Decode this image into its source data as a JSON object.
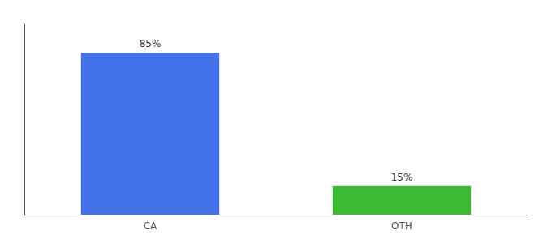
{
  "chart_data": {
    "type": "bar",
    "categories": [
      "CA",
      "OTH"
    ],
    "values": [
      85,
      15
    ],
    "value_labels": [
      "85%",
      "15%"
    ],
    "data_labels": true,
    "colors": [
      "#4472e8",
      "#3dbb35"
    ],
    "ylim": [
      0,
      100
    ],
    "grid": false,
    "tick_labels": "x"
  }
}
